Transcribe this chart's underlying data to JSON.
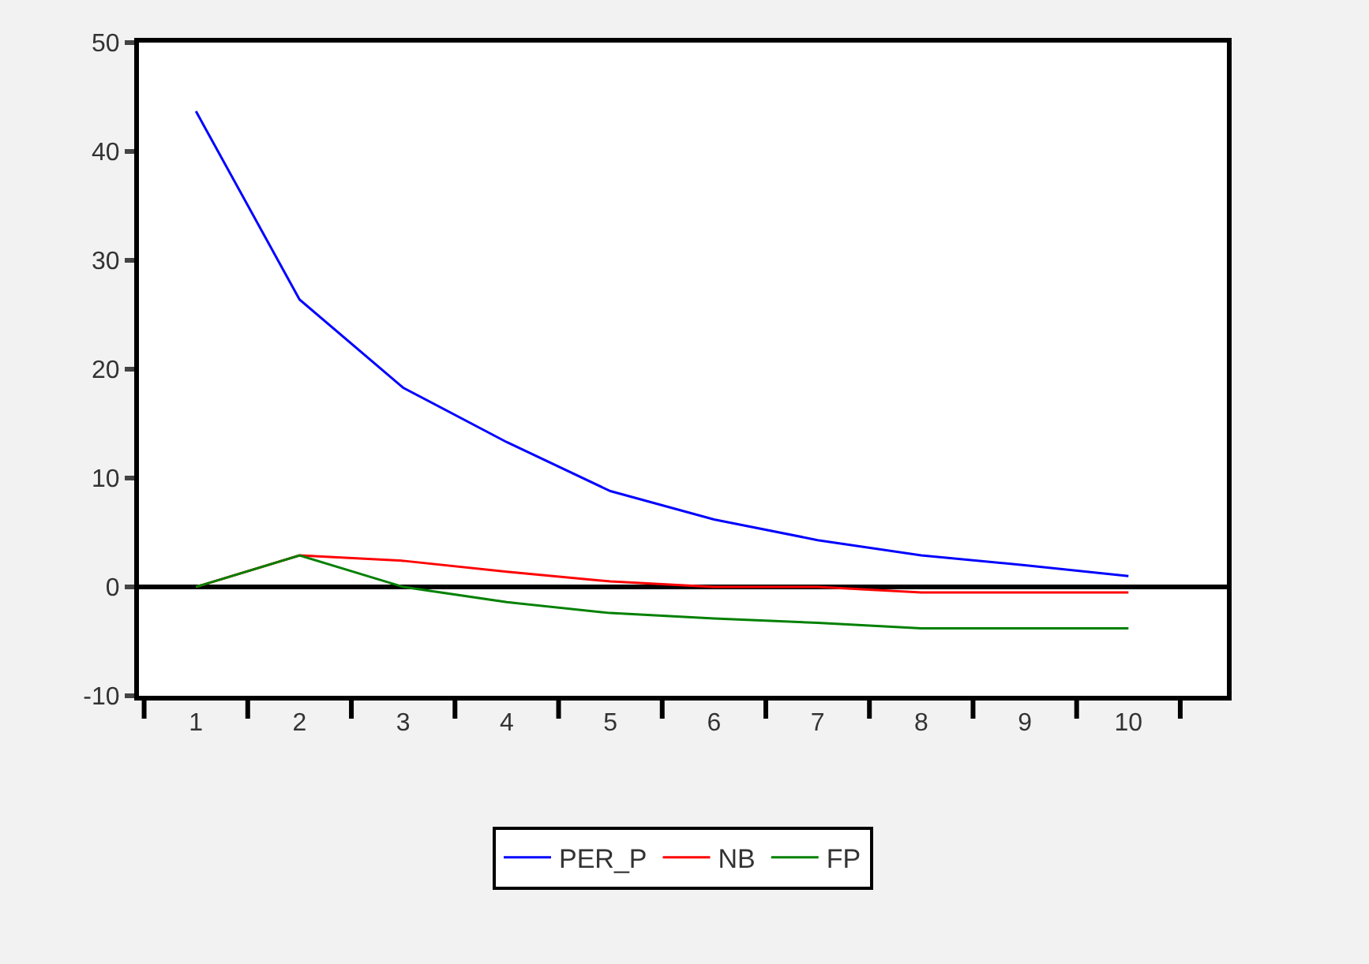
{
  "chart_data": {
    "type": "line",
    "categories": [
      "1",
      "2",
      "3",
      "4",
      "5",
      "6",
      "7",
      "8",
      "9",
      "10"
    ],
    "series": [
      {
        "name": "PER_P",
        "color": "#0000ff",
        "values": [
          43.7,
          26.4,
          18.3,
          13.3,
          8.8,
          6.2,
          4.3,
          2.9,
          2.0,
          1.0
        ]
      },
      {
        "name": "NB",
        "color": "#ff0000",
        "values": [
          0,
          2.9,
          2.4,
          1.4,
          0.5,
          0.0,
          0.0,
          -0.5,
          -0.5,
          -0.5
        ]
      },
      {
        "name": "FP",
        "color": "#008000",
        "values": [
          0,
          2.9,
          0.0,
          -1.4,
          -2.4,
          -2.9,
          -3.3,
          -3.8,
          -3.8,
          -3.8
        ]
      }
    ],
    "ylim": [
      -10,
      50
    ],
    "yticks": [
      -10,
      0,
      10,
      20,
      30,
      40,
      50
    ],
    "ref_lines": [
      {
        "axis": "y",
        "value": 0,
        "color": "#000000"
      }
    ],
    "grid": false,
    "legend": "bottom",
    "marker": "none",
    "line_style": "solid"
  }
}
